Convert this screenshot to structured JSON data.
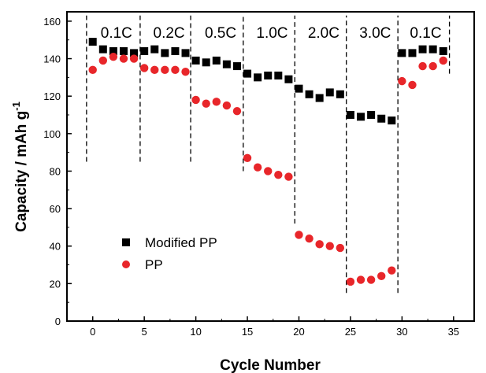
{
  "chart_data": {
    "type": "scatter",
    "title": "",
    "xlabel": "Cycle Number",
    "ylabel": "Capacity / mAh g",
    "ylabel_superscript": "-1",
    "xlim": [
      -2.5,
      37
    ],
    "ylim": [
      0,
      165
    ],
    "xticks": [
      0,
      5,
      10,
      15,
      20,
      25,
      30,
      35
    ],
    "yticks": [
      0,
      20,
      40,
      60,
      80,
      100,
      120,
      140,
      160
    ],
    "grid": false,
    "legend_position": "lower-left",
    "series": [
      {
        "name": "Modified PP",
        "marker": "square",
        "color": "#000000",
        "x": [
          0,
          1,
          2,
          3,
          4,
          5,
          6,
          7,
          8,
          9,
          10,
          11,
          12,
          13,
          14,
          15,
          16,
          17,
          18,
          19,
          20,
          21,
          22,
          23,
          24,
          25,
          26,
          27,
          28,
          29,
          30,
          31,
          32,
          33,
          34
        ],
        "values": [
          149,
          145,
          144,
          144,
          143,
          144,
          145,
          143,
          144,
          143,
          139,
          138,
          139,
          137,
          136,
          132,
          130,
          131,
          131,
          129,
          124,
          121,
          119,
          122,
          121,
          110,
          109,
          110,
          108,
          107,
          143,
          143,
          145,
          145,
          144
        ]
      },
      {
        "name": "PP",
        "marker": "circle",
        "color": "#e8262a",
        "x": [
          0,
          1,
          2,
          3,
          4,
          5,
          6,
          7,
          8,
          9,
          10,
          11,
          12,
          13,
          14,
          15,
          16,
          17,
          18,
          19,
          20,
          21,
          22,
          23,
          24,
          25,
          26,
          27,
          28,
          29,
          30,
          31,
          32,
          33,
          34
        ],
        "values": [
          134,
          139,
          141,
          140,
          140,
          135,
          134,
          134,
          134,
          133,
          118,
          116,
          117,
          115,
          112,
          87,
          82,
          80,
          78,
          77,
          46,
          44,
          41,
          40,
          39,
          21,
          22,
          22,
          24,
          27,
          128,
          126,
          136,
          136,
          139
        ]
      }
    ],
    "rate_segments": [
      {
        "label": "0.1C",
        "x_center": 2.3
      },
      {
        "label": "0.2C",
        "x_center": 7.4
      },
      {
        "label": "0.5C",
        "x_center": 12.4
      },
      {
        "label": "1.0C",
        "x_center": 17.4
      },
      {
        "label": "2.0C",
        "x_center": 22.4
      },
      {
        "label": "3.0C",
        "x_center": 27.4
      },
      {
        "label": "0.1C",
        "x_center": 32.3
      }
    ],
    "dividers": [
      {
        "x": -0.6,
        "y_from": 85,
        "y_to": 163
      },
      {
        "x": 4.6,
        "y_from": 85,
        "y_to": 163
      },
      {
        "x": 9.5,
        "y_from": 85,
        "y_to": 163
      },
      {
        "x": 14.6,
        "y_from": 80,
        "y_to": 163
      },
      {
        "x": 19.6,
        "y_from": 52,
        "y_to": 163
      },
      {
        "x": 24.6,
        "y_from": 15,
        "y_to": 163
      },
      {
        "x": 29.6,
        "y_from": 15,
        "y_to": 163
      },
      {
        "x": 34.6,
        "y_from": 132,
        "y_to": 163
      }
    ]
  }
}
